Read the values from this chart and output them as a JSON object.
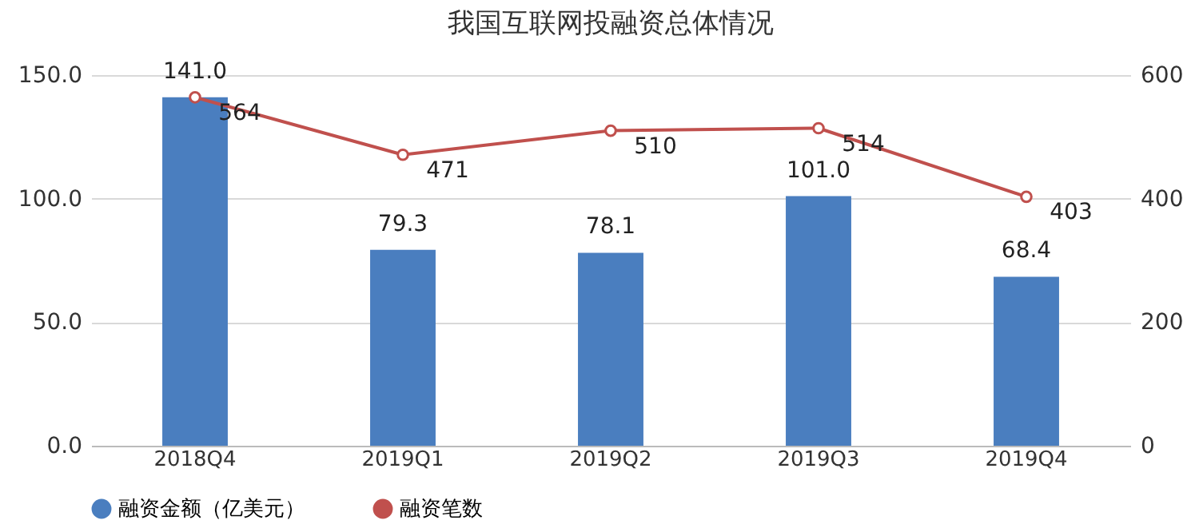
{
  "chart_data": {
    "type": "bar",
    "title": "我国互联网投融资总体情况",
    "categories": [
      "2018Q4",
      "2019Q1",
      "2019Q2",
      "2019Q3",
      "2019Q4"
    ],
    "series": [
      {
        "name": "融资金额（亿美元）",
        "color": "#4a7ebf",
        "values": [
          141.0,
          79.3,
          78.1,
          101.0,
          68.4
        ],
        "value_labels": [
          "141.0",
          "79.3",
          "78.1",
          "101.0",
          "68.4"
        ]
      },
      {
        "name": "融资笔数",
        "type": "line",
        "axis": "y2",
        "color": "#c0504d",
        "values": [
          564,
          471,
          510,
          514,
          403
        ],
        "value_labels": [
          "564",
          "471",
          "510",
          "514",
          "403"
        ],
        "marker": "circle",
        "line_style": "solid"
      }
    ],
    "ylim": [
      0,
      150
    ],
    "yticks": [
      {
        "value": 0,
        "label": "0.0"
      },
      {
        "value": 50,
        "label": "50.0"
      },
      {
        "value": 100,
        "label": "100.0"
      },
      {
        "value": 150,
        "label": "150.0"
      }
    ],
    "y2lim": [
      0,
      600
    ],
    "y2ticks": [
      0,
      200,
      400,
      600
    ],
    "grid": "y",
    "legend": "bottom"
  }
}
